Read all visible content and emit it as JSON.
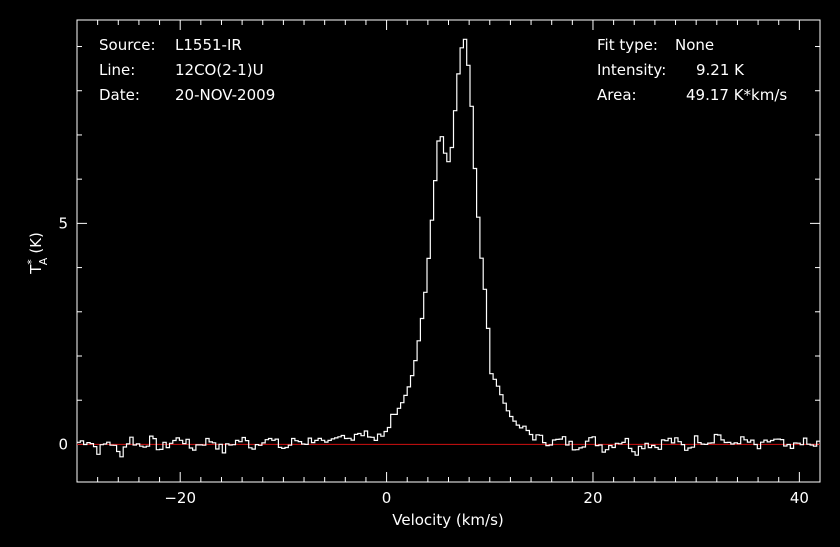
{
  "header": {
    "source_label": "Source:",
    "source_value": "L1551-IR",
    "line_label": "Line:",
    "line_value": "12CO(2-1)U",
    "date_label": "Date:",
    "date_value": "20-NOV-2009",
    "fit_label": "Fit type:",
    "fit_value": "None",
    "intensity_label": "Intensity:",
    "intensity_value": "9.21 K",
    "area_label": "Area:",
    "area_value": "49.17 K*km/s"
  },
  "colors": {
    "background": "#000000",
    "foreground": "#ffffff",
    "baseline": "#d01010"
  },
  "chart_data": {
    "type": "line",
    "step": true,
    "xlabel": "Velocity (km/s)",
    "ylabel_main": "T",
    "ylabel_sup": "*",
    "ylabel_sub": "A",
    "ylabel_unit": "(K)",
    "xlim": [
      -30,
      42
    ],
    "ylim": [
      -0.85,
      9.6
    ],
    "xticks": [
      -20,
      0,
      20,
      40
    ],
    "yticks": [
      0,
      5
    ],
    "baseline_y": 0,
    "grid": false,
    "series": [
      {
        "x": [
          -30,
          -29,
          -28,
          -27,
          -26,
          -25,
          -24,
          -23,
          -22,
          -21,
          -20,
          -19,
          -18,
          -17,
          -16,
          -15,
          -14,
          -13,
          -12,
          -11,
          -10,
          -9,
          -8,
          -7,
          -6,
          -5,
          -4,
          -3.5,
          -3,
          -2.5,
          -2,
          -1.5,
          -1,
          -0.5,
          0,
          0.5,
          1,
          1.5,
          2,
          2.5,
          3,
          3.5,
          4,
          4.5,
          5,
          5.5,
          6,
          6.5,
          7,
          7.5,
          8,
          8.5,
          9,
          9.5,
          10,
          10.5,
          11,
          11.5,
          12,
          12.5,
          13,
          13.5,
          14,
          14.5,
          15,
          16,
          17,
          18,
          19,
          20,
          21,
          22,
          23,
          24,
          25,
          26,
          27,
          28,
          29,
          30,
          31,
          32,
          33,
          34,
          35,
          36,
          37,
          38,
          39,
          40,
          41,
          42
        ],
        "y": [
          0.05,
          0.1,
          -0.15,
          0.1,
          -0.25,
          0.15,
          -0.05,
          0.1,
          -0.1,
          0.05,
          0.15,
          -0.1,
          0.05,
          0.1,
          -0.15,
          0.05,
          0.1,
          -0.05,
          0.15,
          0.05,
          -0.1,
          0.1,
          0.05,
          0.15,
          -0.05,
          0.1,
          0.25,
          0.1,
          0.35,
          0.15,
          0.3,
          0.05,
          0.3,
          0.15,
          0.45,
          0.6,
          0.8,
          1.0,
          1.3,
          1.7,
          2.4,
          3.2,
          4.4,
          5.8,
          7.2,
          6.6,
          6.3,
          7.6,
          8.9,
          9.2,
          8.0,
          5.8,
          4.3,
          3.2,
          1.6,
          1.4,
          1.1,
          0.8,
          0.6,
          0.45,
          0.35,
          0.3,
          0.2,
          0.15,
          0.1,
          0.05,
          0.1,
          -0.05,
          0.05,
          0.1,
          -0.1,
          0.05,
          0.1,
          -0.15,
          0.05,
          -0.05,
          0.1,
          0.05,
          -0.1,
          0.15,
          0.05,
          0.25,
          -0.05,
          0.1,
          0.05,
          -0.1,
          0.1,
          0.05,
          -0.15,
          0.1,
          -0.05,
          0.05
        ]
      }
    ]
  }
}
